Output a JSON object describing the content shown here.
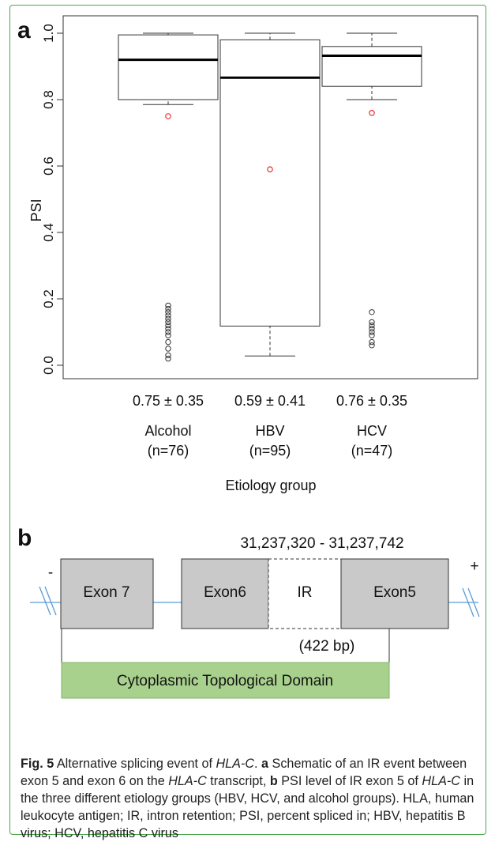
{
  "panels": {
    "a": {
      "label": "a"
    },
    "b": {
      "label": "b"
    }
  },
  "chart_data": {
    "type": "boxplot",
    "ylabel": "PSI",
    "xlabel": "Etiology group",
    "ylim": [
      0.0,
      1.0
    ],
    "yticks": [
      "0.0",
      "0.2",
      "0.4",
      "0.6",
      "0.8",
      "1.0"
    ],
    "groups": [
      {
        "name": "Alcohol",
        "n_label": "(n=76)",
        "mean_sd_label": "0.75 ± 0.35",
        "mean": 0.75,
        "whisker_low": 0.785,
        "q1": 0.8,
        "median": 0.92,
        "q3": 0.995,
        "whisker_high": 1.0,
        "outliers": [
          0.02,
          0.03,
          0.05,
          0.07,
          0.09,
          0.1,
          0.11,
          0.12,
          0.13,
          0.14,
          0.15,
          0.16,
          0.17,
          0.18
        ]
      },
      {
        "name": "HBV",
        "n_label": "(n=95)",
        "mean_sd_label": "0.59 ± 0.41",
        "mean": 0.59,
        "whisker_low": 0.028,
        "q1": 0.118,
        "median": 0.866,
        "q3": 0.98,
        "whisker_high": 1.0,
        "outliers": []
      },
      {
        "name": "HCV",
        "n_label": "(n=47)",
        "mean_sd_label": "0.76 ± 0.35",
        "mean": 0.76,
        "whisker_low": 0.8,
        "q1": 0.84,
        "median": 0.932,
        "q3": 0.96,
        "whisker_high": 1.0,
        "outliers": [
          0.06,
          0.07,
          0.09,
          0.1,
          0.11,
          0.12,
          0.13,
          0.16
        ]
      }
    ]
  },
  "diagram": {
    "coordinates": "31,237,320 - 31,237,742",
    "minus_label": "-",
    "plus_label": "+",
    "exon7_label": "Exon 7",
    "exon6_label": "Exon6",
    "ir_label": "IR",
    "exon5_label": "Exon5",
    "ir_size_label": "(422 bp)",
    "domain_label": "Cytoplasmic Topological Domain",
    "colors": {
      "exon_fill": "#c9c9c9",
      "domain_fill": "#a9d18e",
      "line": "#5b9bd5"
    }
  },
  "caption": {
    "fig_label": "Fig. 5",
    "t1": " Alternative splicing event of ",
    "gene1": "HLA-C",
    "t2": ". ",
    "a": "a",
    "t3": " Schematic of an IR event between exon 5 and exon 6 on the ",
    "gene2": "HLA-C",
    "t4": " transcript, ",
    "b": "b",
    "t5": " PSI level of IR exon 5 of ",
    "gene3": "HLA-C",
    "t6": " in the three different etiology groups (HBV, HCV, and alcohol groups). HLA, human leukocyte antigen; IR, intron retention; PSI, percent spliced in; HBV, hepatitis B virus; HCV, hepatitis C virus"
  }
}
